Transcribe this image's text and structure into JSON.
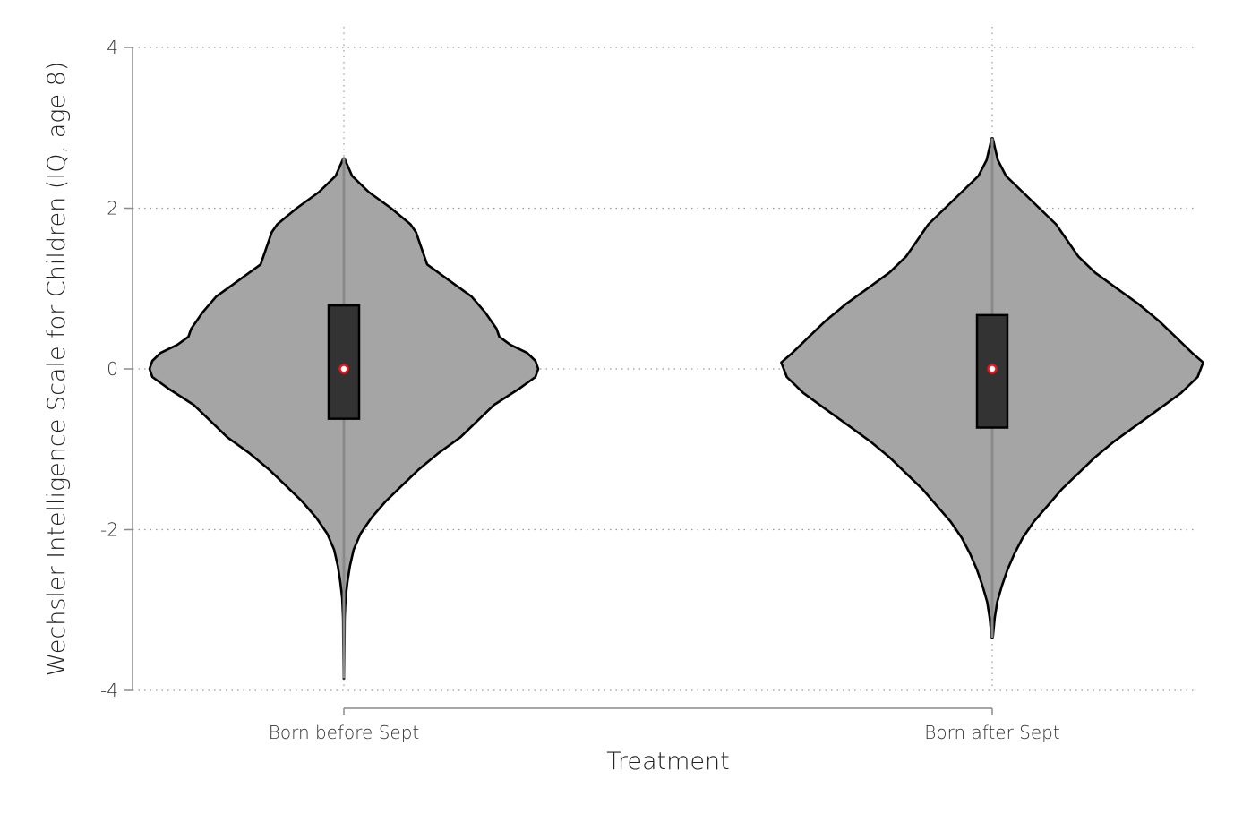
{
  "chart_data": {
    "type": "violin",
    "xlabel": "Treatment",
    "ylabel": "Wechsler Intelligence Scale for Children (IQ, age 8)",
    "ylim": [
      -4,
      4
    ],
    "yticks": [
      -4,
      -2,
      0,
      2,
      4
    ],
    "grid": true,
    "categories": [
      "Born before Sept",
      "Born after Sept"
    ],
    "colors": {
      "violin_fill": "#a5a5a5",
      "violin_edge": "#000000",
      "box_fill": "#333333",
      "median_marker": "#e8141c",
      "whisker": "#8a8a8a"
    },
    "series": [
      {
        "category": "Born before Sept",
        "median": 0.0,
        "q1": -0.62,
        "q3": 0.79,
        "min": -3.85,
        "max": 2.62,
        "density": [
          [
            2.62,
            0.002
          ],
          [
            2.4,
            0.03
          ],
          [
            2.2,
            0.09
          ],
          [
            2.0,
            0.17
          ],
          [
            1.8,
            0.24
          ],
          [
            1.7,
            0.26
          ],
          [
            1.5,
            0.28
          ],
          [
            1.3,
            0.3
          ],
          [
            1.1,
            0.38
          ],
          [
            0.9,
            0.46
          ],
          [
            0.7,
            0.51
          ],
          [
            0.6,
            0.53
          ],
          [
            0.5,
            0.55
          ],
          [
            0.4,
            0.56
          ],
          [
            0.3,
            0.6
          ],
          [
            0.2,
            0.66
          ],
          [
            0.1,
            0.69
          ],
          [
            0.0,
            0.7
          ],
          [
            -0.1,
            0.69
          ],
          [
            -0.25,
            0.63
          ],
          [
            -0.45,
            0.54
          ],
          [
            -0.65,
            0.48
          ],
          [
            -0.85,
            0.42
          ],
          [
            -1.05,
            0.34
          ],
          [
            -1.25,
            0.27
          ],
          [
            -1.45,
            0.21
          ],
          [
            -1.65,
            0.15
          ],
          [
            -1.85,
            0.1
          ],
          [
            -2.05,
            0.06
          ],
          [
            -2.25,
            0.035
          ],
          [
            -2.45,
            0.022
          ],
          [
            -2.65,
            0.013
          ],
          [
            -2.85,
            0.006
          ],
          [
            -3.1,
            0.003
          ],
          [
            -3.5,
            0.002
          ],
          [
            -3.85,
            0.001
          ]
        ]
      },
      {
        "category": "Born after Sept",
        "median": 0.0,
        "q1": -0.73,
        "q3": 0.67,
        "min": -3.35,
        "max": 2.87,
        "density": [
          [
            2.87,
            0.002
          ],
          [
            2.6,
            0.02
          ],
          [
            2.4,
            0.05
          ],
          [
            2.2,
            0.11
          ],
          [
            2.0,
            0.17
          ],
          [
            1.8,
            0.23
          ],
          [
            1.6,
            0.27
          ],
          [
            1.4,
            0.31
          ],
          [
            1.2,
            0.37
          ],
          [
            1.0,
            0.45
          ],
          [
            0.8,
            0.53
          ],
          [
            0.6,
            0.6
          ],
          [
            0.4,
            0.66
          ],
          [
            0.2,
            0.72
          ],
          [
            0.08,
            0.76
          ],
          [
            -0.1,
            0.74
          ],
          [
            -0.3,
            0.68
          ],
          [
            -0.5,
            0.6
          ],
          [
            -0.7,
            0.52
          ],
          [
            -0.9,
            0.44
          ],
          [
            -1.1,
            0.37
          ],
          [
            -1.3,
            0.31
          ],
          [
            -1.5,
            0.25
          ],
          [
            -1.7,
            0.2
          ],
          [
            -1.9,
            0.15
          ],
          [
            -2.1,
            0.11
          ],
          [
            -2.3,
            0.08
          ],
          [
            -2.5,
            0.055
          ],
          [
            -2.7,
            0.035
          ],
          [
            -2.9,
            0.018
          ],
          [
            -3.1,
            0.009
          ],
          [
            -3.35,
            0.002
          ]
        ]
      }
    ]
  }
}
